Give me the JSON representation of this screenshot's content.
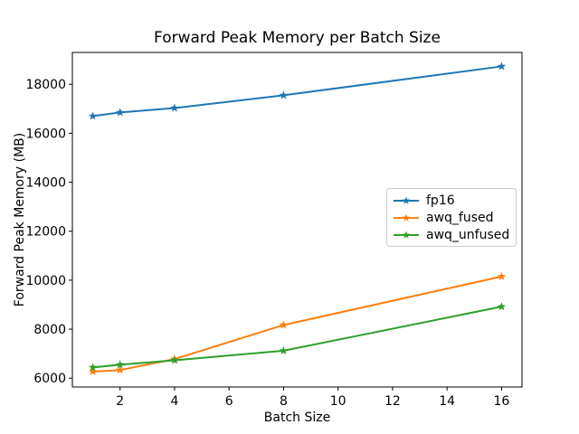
{
  "chart_data": {
    "type": "line",
    "title": "Forward Peak Memory per Batch Size",
    "xlabel": "Batch Size",
    "ylabel": "Forward Peak Memory (MB)",
    "x": [
      1,
      2,
      4,
      8,
      16
    ],
    "series": [
      {
        "name": "fp16",
        "color": "#1f77b4",
        "values": [
          16700,
          16850,
          17030,
          17550,
          18730
        ]
      },
      {
        "name": "awq_fused",
        "color": "#ff7f0e",
        "values": [
          6270,
          6330,
          6780,
          8170,
          10150
        ]
      },
      {
        "name": "awq_unfused",
        "color": "#2ca02c",
        "values": [
          6440,
          6550,
          6730,
          7120,
          8920
        ]
      }
    ],
    "marker": "star",
    "xticks": [
      2,
      4,
      6,
      8,
      10,
      12,
      14,
      16
    ],
    "yticks": [
      6000,
      8000,
      10000,
      12000,
      14000,
      16000,
      18000
    ],
    "xlim": [
      0.25,
      16.75
    ],
    "ylim": [
      5640,
      19300
    ],
    "grid": false,
    "legend_position": "center-right",
    "axis_color": "#000000",
    "background_color": "#ffffff"
  }
}
